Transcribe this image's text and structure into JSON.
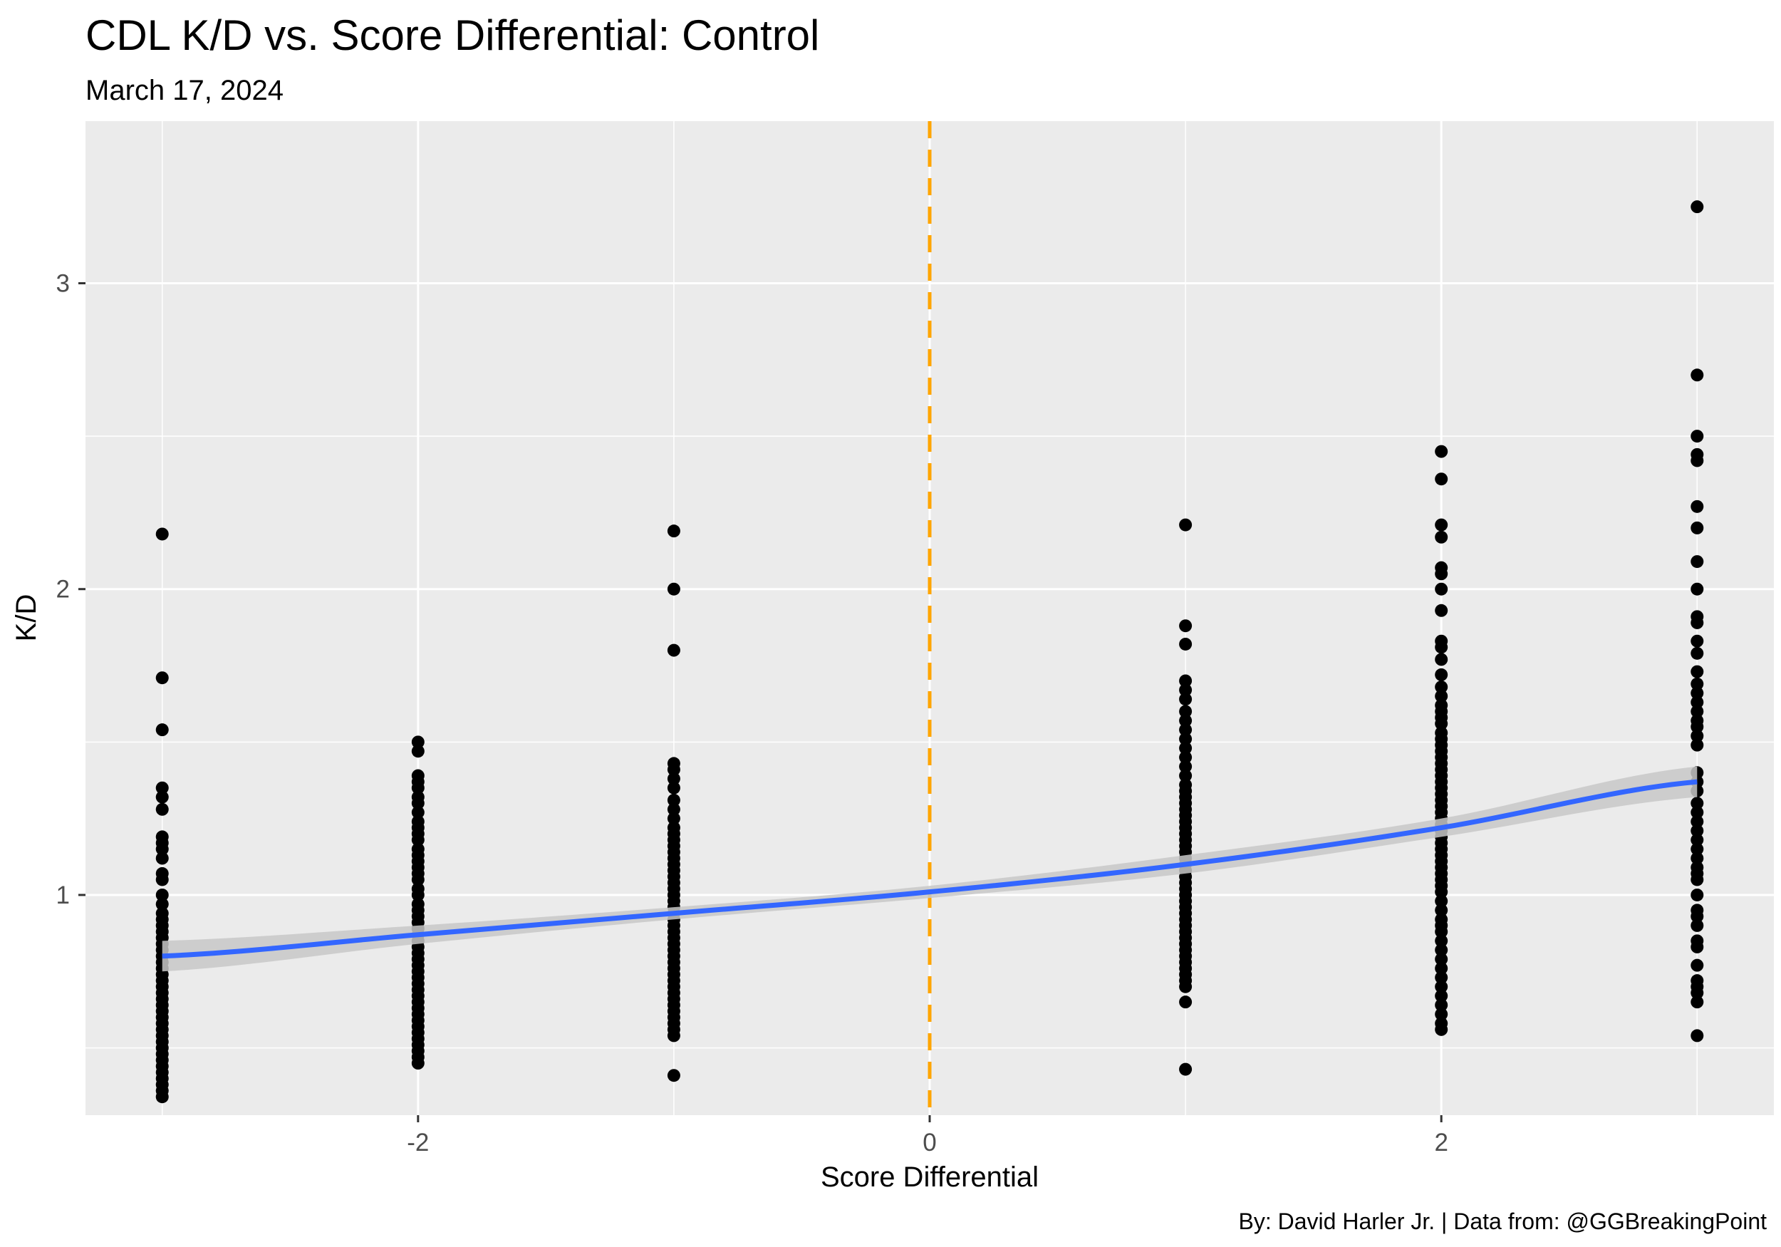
{
  "chart_data": {
    "type": "scatter",
    "title": "CDL K/D vs. Score Differential: Control",
    "subtitle": "March 17, 2024",
    "xlabel": "Score Differential",
    "ylabel": "K/D",
    "caption": "By: David Harler Jr. | Data from: @GGBreakingPoint",
    "xlim": [
      -3.3,
      3.3
    ],
    "ylim": [
      0.28,
      3.53
    ],
    "x_ticks": [
      {
        "value": -2,
        "label": "-2"
      },
      {
        "value": 0,
        "label": "0"
      },
      {
        "value": 2,
        "label": "2"
      }
    ],
    "y_ticks": [
      {
        "value": 1,
        "label": "1"
      },
      {
        "value": 2,
        "label": "2"
      },
      {
        "value": 3,
        "label": "3"
      }
    ],
    "minor_x": [
      -3,
      -1,
      1,
      3
    ],
    "minor_y": [
      0.5,
      1.5,
      2.5
    ],
    "grid": true,
    "colors": {
      "panel": "#ebebeb",
      "grid": "#ffffff",
      "points": "#000000",
      "trend_line": "#3366ff",
      "confidence_band": "#c8c8c8",
      "reference_line": "#ffa500"
    },
    "reference_line": {
      "x": 0,
      "style": "dashed"
    },
    "trend": {
      "x": [
        -3,
        -2,
        -1,
        0,
        1,
        2,
        3
      ],
      "y": [
        0.8,
        0.87,
        0.94,
        1.01,
        1.1,
        1.22,
        1.37
      ],
      "ci_low": [
        0.75,
        0.84,
        0.92,
        0.99,
        1.07,
        1.19,
        1.32
      ],
      "ci_high": [
        0.85,
        0.9,
        0.96,
        1.03,
        1.13,
        1.25,
        1.42
      ]
    },
    "series": [
      {
        "x": -3,
        "y": [
          2.18,
          1.71,
          1.54,
          1.35,
          1.32,
          1.28,
          1.19,
          1.17,
          1.15,
          1.12,
          1.07,
          1.05,
          1.0,
          0.97,
          0.94,
          0.92,
          0.9,
          0.88,
          0.86,
          0.84,
          0.82,
          0.8,
          0.78,
          0.76,
          0.74,
          0.72,
          0.7,
          0.68,
          0.66,
          0.64,
          0.62,
          0.6,
          0.58,
          0.56,
          0.54,
          0.52,
          0.5,
          0.48,
          0.46,
          0.44,
          0.42,
          0.4,
          0.38,
          0.36,
          0.34
        ]
      },
      {
        "x": -2,
        "y": [
          1.5,
          1.47,
          1.39,
          1.37,
          1.35,
          1.32,
          1.3,
          1.27,
          1.24,
          1.22,
          1.2,
          1.18,
          1.15,
          1.13,
          1.11,
          1.09,
          1.07,
          1.05,
          1.02,
          1.0,
          0.97,
          0.95,
          0.93,
          0.91,
          0.89,
          0.87,
          0.85,
          0.83,
          0.81,
          0.79,
          0.77,
          0.75,
          0.73,
          0.71,
          0.69,
          0.67,
          0.65,
          0.63,
          0.61,
          0.59,
          0.57,
          0.55,
          0.53,
          0.51,
          0.49,
          0.47,
          0.45
        ]
      },
      {
        "x": -1,
        "y": [
          2.19,
          2.0,
          1.8,
          1.43,
          1.41,
          1.38,
          1.35,
          1.31,
          1.28,
          1.25,
          1.22,
          1.2,
          1.18,
          1.16,
          1.14,
          1.12,
          1.1,
          1.08,
          1.06,
          1.04,
          1.02,
          1.0,
          0.98,
          0.96,
          0.94,
          0.92,
          0.9,
          0.88,
          0.86,
          0.84,
          0.82,
          0.8,
          0.78,
          0.76,
          0.74,
          0.72,
          0.7,
          0.68,
          0.66,
          0.64,
          0.62,
          0.6,
          0.58,
          0.56,
          0.54,
          0.41
        ]
      },
      {
        "x": 1,
        "y": [
          2.21,
          1.88,
          1.82,
          1.7,
          1.67,
          1.64,
          1.6,
          1.57,
          1.54,
          1.51,
          1.48,
          1.45,
          1.42,
          1.39,
          1.36,
          1.34,
          1.32,
          1.3,
          1.28,
          1.26,
          1.24,
          1.22,
          1.2,
          1.18,
          1.16,
          1.14,
          1.12,
          1.1,
          1.08,
          1.06,
          1.04,
          1.02,
          1.0,
          0.98,
          0.96,
          0.94,
          0.92,
          0.9,
          0.88,
          0.86,
          0.84,
          0.82,
          0.8,
          0.78,
          0.76,
          0.74,
          0.72,
          0.7,
          0.65,
          0.43
        ]
      },
      {
        "x": 2,
        "y": [
          2.45,
          2.36,
          2.21,
          2.17,
          2.07,
          2.05,
          2.0,
          1.93,
          1.83,
          1.81,
          1.77,
          1.72,
          1.68,
          1.65,
          1.62,
          1.6,
          1.58,
          1.56,
          1.53,
          1.51,
          1.49,
          1.47,
          1.45,
          1.43,
          1.41,
          1.39,
          1.37,
          1.35,
          1.33,
          1.31,
          1.29,
          1.27,
          1.25,
          1.23,
          1.21,
          1.19,
          1.17,
          1.15,
          1.13,
          1.11,
          1.09,
          1.07,
          1.05,
          1.03,
          1.01,
          0.98,
          0.95,
          0.92,
          0.9,
          0.88,
          0.85,
          0.82,
          0.79,
          0.76,
          0.73,
          0.7,
          0.67,
          0.64,
          0.61,
          0.58,
          0.56
        ]
      },
      {
        "x": 3,
        "y": [
          3.25,
          2.7,
          2.5,
          2.44,
          2.42,
          2.27,
          2.2,
          2.09,
          2.0,
          1.91,
          1.89,
          1.83,
          1.79,
          1.73,
          1.69,
          1.66,
          1.63,
          1.6,
          1.57,
          1.55,
          1.52,
          1.49,
          1.4,
          1.37,
          1.34,
          1.3,
          1.27,
          1.24,
          1.21,
          1.18,
          1.15,
          1.12,
          1.09,
          1.07,
          1.05,
          1.0,
          0.95,
          0.93,
          0.9,
          0.85,
          0.83,
          0.77,
          0.72,
          0.7,
          0.68,
          0.65,
          0.54
        ]
      }
    ]
  }
}
